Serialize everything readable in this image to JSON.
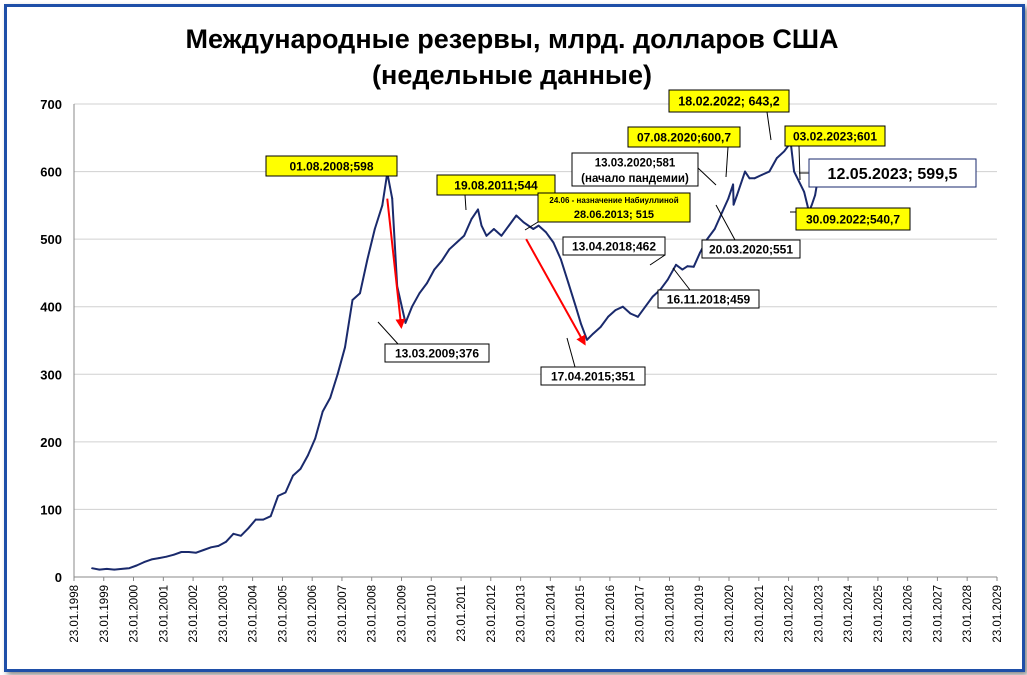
{
  "chart_data": {
    "type": "line",
    "title_line1": "Международные резервы, млрд. долларов США",
    "title_line2": "(недельные данные)",
    "xlabel": "",
    "ylabel": "",
    "ylim": [
      0,
      700
    ],
    "yticks": [
      "0",
      "100",
      "200",
      "300",
      "400",
      "500",
      "600",
      "700"
    ],
    "xticks": [
      "23.01.1998",
      "23.01.1999",
      "23.01.2000",
      "23.01.2001",
      "23.01.2002",
      "23.01.2003",
      "23.01.2004",
      "23.01.2005",
      "23.01.2006",
      "23.01.2007",
      "23.01.2008",
      "23.01.2009",
      "23.01.2010",
      "23.01.2011",
      "23.01.2012",
      "23.01.2013",
      "23.01.2014",
      "23.01.2015",
      "23.01.2016",
      "23.01.2017",
      "23.01.2018",
      "23.01.2019",
      "23.01.2020",
      "23.01.2021",
      "23.01.2022",
      "23.01.2023",
      "23.01.2024",
      "23.01.2025",
      "23.01.2026",
      "23.01.2027",
      "23.01.2028",
      "23.01.2029"
    ],
    "grid": true,
    "line_color": "#1a2a6c",
    "series": [
      {
        "x": [
          "1998-09-01",
          "1998-12-01",
          "1999-03-01",
          "1999-06-01",
          "1999-09-01",
          "1999-12-01",
          "2000-03-01",
          "2000-06-01",
          "2000-09-01",
          "2000-12-01",
          "2001-03-01",
          "2001-06-01",
          "2001-09-01",
          "2001-12-01",
          "2002-03-01",
          "2002-06-01",
          "2002-09-01",
          "2002-12-01",
          "2003-03-01",
          "2003-06-01",
          "2003-09-01",
          "2003-12-01",
          "2004-03-01",
          "2004-06-01",
          "2004-09-01",
          "2004-12-01",
          "2005-03-01",
          "2005-06-01",
          "2005-09-01",
          "2005-12-01",
          "2006-03-01",
          "2006-06-01",
          "2006-09-01",
          "2006-12-01",
          "2007-03-01",
          "2007-06-01",
          "2007-09-01",
          "2007-12-01",
          "2008-03-01",
          "2008-06-01",
          "2008-08-01",
          "2008-10-01",
          "2008-12-01",
          "2009-03-13",
          "2009-06-01",
          "2009-09-01",
          "2009-12-01",
          "2010-03-01",
          "2010-06-01",
          "2010-09-01",
          "2010-12-01",
          "2011-03-01",
          "2011-06-01",
          "2011-08-19",
          "2011-10-01",
          "2011-12-01",
          "2012-03-01",
          "2012-06-01",
          "2012-09-01",
          "2012-12-01",
          "2013-03-01",
          "2013-06-28",
          "2013-09-01",
          "2013-12-01",
          "2014-03-01",
          "2014-06-01",
          "2014-09-01",
          "2014-12-01",
          "2015-02-01",
          "2015-04-17",
          "2015-07-01",
          "2015-10-01",
          "2016-01-01",
          "2016-04-01",
          "2016-07-01",
          "2016-10-01",
          "2017-01-01",
          "2017-04-01",
          "2017-07-01",
          "2017-10-01",
          "2018-01-01",
          "2018-04-13",
          "2018-07-01",
          "2018-09-01",
          "2018-11-16",
          "2019-02-01",
          "2019-05-01",
          "2019-08-01",
          "2019-11-01",
          "2020-01-15",
          "2020-03-13",
          "2020-03-20",
          "2020-05-01",
          "2020-08-07",
          "2020-10-01",
          "2020-12-01",
          "2021-03-01",
          "2021-06-01",
          "2021-09-01",
          "2021-12-01",
          "2022-02-18",
          "2022-04-01",
          "2022-06-01",
          "2022-08-01",
          "2022-09-30",
          "2022-11-01",
          "2022-12-15",
          "2023-02-03",
          "2023-03-15",
          "2023-05-12"
        ],
        "values": [
          13,
          11,
          12,
          11,
          12,
          13,
          17,
          22,
          26,
          28,
          30,
          33,
          37,
          37,
          36,
          40,
          44,
          46,
          52,
          64,
          61,
          72,
          85,
          85,
          90,
          120,
          125,
          150,
          160,
          180,
          205,
          245,
          265,
          300,
          340,
          410,
          420,
          470,
          515,
          550,
          598,
          560,
          430,
          376,
          400,
          420,
          435,
          455,
          468,
          485,
          495,
          505,
          530,
          544,
          520,
          505,
          515,
          505,
          520,
          535,
          525,
          515,
          520,
          510,
          495,
          470,
          435,
          400,
          375,
          351,
          360,
          370,
          385,
          395,
          400,
          390,
          385,
          400,
          415,
          425,
          440,
          462,
          455,
          460,
          459,
          480,
          500,
          515,
          540,
          560,
          581,
          551,
          565,
          600,
          590,
          590,
          595,
          600,
          620,
          630,
          643,
          600,
          585,
          570,
          541,
          550,
          565,
          601,
          590,
          600
        ]
      }
    ],
    "arrows": [
      {
        "from": [
          "2008-08-01",
          560
        ],
        "to": [
          "2009-01-20",
          370
        ]
      },
      {
        "from": [
          "2013-04-01",
          500
        ],
        "to": [
          "2015-03-20",
          345
        ]
      }
    ],
    "annotations": [
      {
        "text": "01.08.2008;598",
        "style": "yellow"
      },
      {
        "text": "13.03.2009;376",
        "style": "white"
      },
      {
        "text": "19.08.2011;544",
        "style": "yellow"
      },
      {
        "text": "24.06 - назначение Набиуллиной",
        "text2": "28.06.2013; 515",
        "style": "yellow"
      },
      {
        "text": "17.04.2015;351",
        "style": "white"
      },
      {
        "text": "13.04.2018;462",
        "style": "white"
      },
      {
        "text": "16.11.2018;459",
        "style": "white"
      },
      {
        "text": "13.03.2020;581",
        "text2": "(начало пандемии)",
        "style": "white"
      },
      {
        "text": "20.03.2020;551",
        "style": "white"
      },
      {
        "text": "07.08.2020;600,7",
        "style": "yellow"
      },
      {
        "text": "18.02.2022; 643,2",
        "style": "yellow"
      },
      {
        "text": "03.02.2023;601",
        "style": "yellow"
      },
      {
        "text": "30.09.2022;540,7",
        "style": "yellow"
      },
      {
        "text": "12.05.2023; 599,5",
        "style": "latest"
      }
    ]
  }
}
